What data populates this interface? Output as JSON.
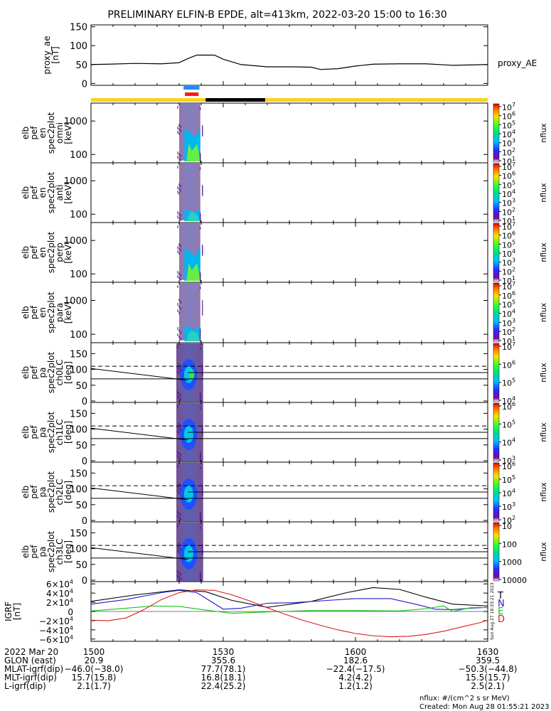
{
  "title": "PRELIMINARY ELFIN-B EPDE, alt=413km, 2022-03-20 15:00 to 16:30",
  "time_axis": {
    "start_min": 0,
    "end_min": 90,
    "ticks": [
      0,
      30,
      60,
      90
    ]
  },
  "state_bar": {
    "colors": {
      "sunlit": "#ffd21a",
      "shadow": "#000000"
    },
    "shadow_interval_min": [
      26,
      39.5
    ],
    "science_bars": [
      {
        "color": "#1e8cff",
        "interval_min": [
          21.0,
          24.6
        ]
      },
      {
        "color": "#ff1a1a",
        "interval_min": [
          21.3,
          24.4
        ]
      }
    ]
  },
  "chart_data": [
    {
      "type": "line",
      "panel": "proxy_ae",
      "ylabel": [
        "proxy_ae",
        "[nT]"
      ],
      "ylim": [
        -5,
        155
      ],
      "yticks": [
        "0",
        "50",
        "100",
        "150"
      ],
      "legend": "proxy_AE",
      "series": [
        {
          "color": "#000000",
          "x": [
            0,
            4,
            10,
            16,
            20,
            22,
            24,
            26,
            28,
            30,
            34,
            40,
            46,
            50,
            52,
            56,
            60,
            64,
            70,
            76,
            82,
            90
          ],
          "y": [
            50,
            51,
            53,
            52,
            55,
            66,
            75,
            75,
            75,
            64,
            50,
            44,
            44,
            43,
            37,
            39,
            46,
            51,
            52,
            52,
            48,
            50
          ]
        }
      ]
    },
    {
      "type": "heatmap",
      "panel": "en_omni",
      "ylabel": [
        "elb",
        "pef",
        "en",
        "spec2plot",
        "omni",
        "[keV]"
      ],
      "yticks": [
        "1000",
        "100"
      ],
      "colorbar": {
        "label": "nflux",
        "ticks": [
          "10",
          "10",
          "10",
          "10",
          "10",
          "10",
          "10"
        ],
        "exponents": [
          "1",
          "2",
          "3",
          "4",
          "5",
          "6",
          "7"
        ]
      }
    },
    {
      "type": "heatmap",
      "panel": "en_anti",
      "ylabel": [
        "elb",
        "pef",
        "en",
        "spec2plot",
        "anti",
        "[keV]"
      ],
      "yticks": [
        "1000",
        "100"
      ],
      "colorbar": {
        "label": "nflux",
        "ticks": [
          "10",
          "10",
          "10",
          "10",
          "10",
          "10",
          "10"
        ],
        "exponents": [
          "1",
          "2",
          "3",
          "4",
          "5",
          "6",
          "7"
        ]
      }
    },
    {
      "type": "heatmap",
      "panel": "en_perp",
      "ylabel": [
        "elb",
        "pef",
        "en",
        "spec2plot",
        "perp",
        "[keV]"
      ],
      "yticks": [
        "1000",
        "100"
      ],
      "colorbar": {
        "label": "nflux",
        "ticks": [
          "10",
          "10",
          "10",
          "10",
          "10",
          "10",
          "10"
        ],
        "exponents": [
          "1",
          "2",
          "3",
          "4",
          "5",
          "6",
          "7"
        ]
      }
    },
    {
      "type": "heatmap",
      "panel": "en_para",
      "ylabel": [
        "elb",
        "pef",
        "en",
        "spec2plot",
        "para",
        "[keV]"
      ],
      "yticks": [
        "1000",
        "100"
      ],
      "colorbar": {
        "label": "nflux",
        "ticks": [
          "10",
          "10",
          "10",
          "10",
          "10",
          "10",
          "10"
        ],
        "exponents": [
          "1",
          "2",
          "3",
          "4",
          "5",
          "6",
          "7"
        ]
      }
    },
    {
      "type": "heatmap",
      "panel": "pa_ch0LC",
      "ylabel": [
        "elb",
        "pef",
        "pa",
        "spec2plot",
        "ch0LC",
        "[deg]"
      ],
      "ylim": [
        0,
        180
      ],
      "yticks": [
        "0",
        "50",
        "100",
        "150"
      ],
      "colorbar": {
        "label": "nflux",
        "ticks": [
          "10",
          "10",
          "10",
          "10"
        ],
        "exponents": [
          "4",
          "5",
          "6",
          "7"
        ]
      }
    },
    {
      "type": "heatmap",
      "panel": "pa_ch1LC",
      "ylabel": [
        "elb",
        "pef",
        "pa",
        "spec2plot",
        "ch1LC",
        "[deg]"
      ],
      "ylim": [
        0,
        180
      ],
      "yticks": [
        "0",
        "50",
        "100",
        "150"
      ],
      "colorbar": {
        "label": "nflux",
        "ticks": [
          "10",
          "10",
          "10",
          "10"
        ],
        "exponents": [
          "3",
          "4",
          "5",
          "6"
        ]
      }
    },
    {
      "type": "heatmap",
      "panel": "pa_ch2LC",
      "ylabel": [
        "elb",
        "pef",
        "pa",
        "spec2plot",
        "ch2LC",
        "[deg]"
      ],
      "ylim": [
        0,
        180
      ],
      "yticks": [
        "0",
        "50",
        "100",
        "150"
      ],
      "colorbar": {
        "label": "nflux",
        "ticks": [
          "10",
          "10",
          "10",
          "10",
          "10"
        ],
        "exponents": [
          "2",
          "3",
          "4",
          "5",
          "6"
        ]
      }
    },
    {
      "type": "heatmap",
      "panel": "pa_ch3LC",
      "ylabel": [
        "elb",
        "pef",
        "pa",
        "spec2plot",
        "ch3LC",
        "[deg]"
      ],
      "ylim": [
        0,
        180
      ],
      "yticks": [
        "0",
        "50",
        "100",
        "150"
      ],
      "colorbar": {
        "label": "nflux",
        "ticks": [
          "10000",
          "1000",
          "100",
          "10"
        ]
      }
    },
    {
      "type": "line",
      "panel": "igrf",
      "ylabel": [
        "IGRF",
        "[nT]"
      ],
      "ylim": [
        -6.5,
        6.5
      ],
      "yticks": [
        {
          "m": "6",
          "e": "4",
          "sign": ""
        },
        {
          "m": "4",
          "e": "4",
          "sign": ""
        },
        {
          "m": "2",
          "e": "4",
          "sign": ""
        },
        {
          "m": "0",
          "e": "",
          "sign": ""
        },
        {
          "m": "2",
          "e": "4",
          "sign": "−"
        },
        {
          "m": "4",
          "e": "4",
          "sign": "−"
        },
        {
          "m": "6",
          "e": "4",
          "sign": "−"
        }
      ],
      "side_note": "Sun Aug 27 18:33:21 2023",
      "series": [
        {
          "name": "T",
          "color": "#000000",
          "x": [
            0,
            10,
            20,
            26,
            32,
            40,
            50,
            58,
            64,
            70,
            76,
            82,
            90
          ],
          "y": [
            2.2,
            3.6,
            4.7,
            4.3,
            2.4,
            0.9,
            2.2,
            4.1,
            5.2,
            4.8,
            3.1,
            1.6,
            1.2
          ]
        },
        {
          "name": "N",
          "color": "#1c1cc8",
          "x": [
            0,
            8,
            16,
            20,
            24,
            30,
            34,
            40,
            46,
            52,
            60,
            68,
            74,
            78,
            82,
            86,
            90
          ],
          "y": [
            1.6,
            2.6,
            4.1,
            4.6,
            4.1,
            0.5,
            0.7,
            1.8,
            1.9,
            2.3,
            2.8,
            2.8,
            1.5,
            0.5,
            0.4,
            0.7,
            0.9
          ]
        },
        {
          "name": "E",
          "color": "#10c410",
          "x": [
            0,
            8,
            14,
            20,
            26,
            32,
            40,
            50,
            60,
            70,
            76,
            80,
            82,
            84,
            86,
            88,
            90
          ],
          "y": [
            0.1,
            0.7,
            1.2,
            1.1,
            0.3,
            -0.4,
            -0.1,
            0.2,
            0.2,
            0.1,
            0.6,
            1.2,
            0.0,
            0.4,
            0.8,
            0.9,
            0.8
          ]
        },
        {
          "name": "D",
          "color": "#d81c1c",
          "x": [
            0,
            4,
            8,
            12,
            16,
            20,
            24,
            28,
            32,
            36,
            40,
            44,
            48,
            52,
            56,
            60,
            64,
            68,
            72,
            76,
            80,
            84,
            88,
            90
          ],
          "y": [
            -1.9,
            -2.0,
            -1.4,
            0.4,
            2.6,
            4.1,
            4.7,
            4.6,
            3.6,
            2.3,
            0.8,
            -0.6,
            -1.9,
            -3.0,
            -4.0,
            -4.8,
            -5.3,
            -5.5,
            -5.4,
            -5.0,
            -4.3,
            -3.4,
            -2.5,
            -1.9
          ]
        }
      ]
    }
  ],
  "footer": {
    "rows": [
      [
        "2022 Mar 20",
        "1500",
        "1530",
        "1600",
        "1630"
      ],
      [
        "GLON (east)",
        "20.9",
        "355.6",
        "182.6",
        "359.5"
      ],
      [
        "MLAT-igrf(dip)",
        "−46.0(−38.0)",
        "77.7(78.1)",
        "−22.4(−17.5)",
        "−50.3(−44.8)"
      ],
      [
        "MLT-igrf(dip)",
        "15.7(15.8)",
        "16.8(18.1)",
        "4.2(4.2)",
        "15.5(15.7)"
      ],
      [
        "L-igrf(dip)",
        "2.1(1.7)",
        "22.4(25.2)",
        "1.2(1.2)",
        "2.5(2.1)"
      ]
    ],
    "units_note": "nflux: #/(cm^2 s sr MeV)",
    "created": "Created: Mon Aug 28 01:55:21 2023"
  }
}
